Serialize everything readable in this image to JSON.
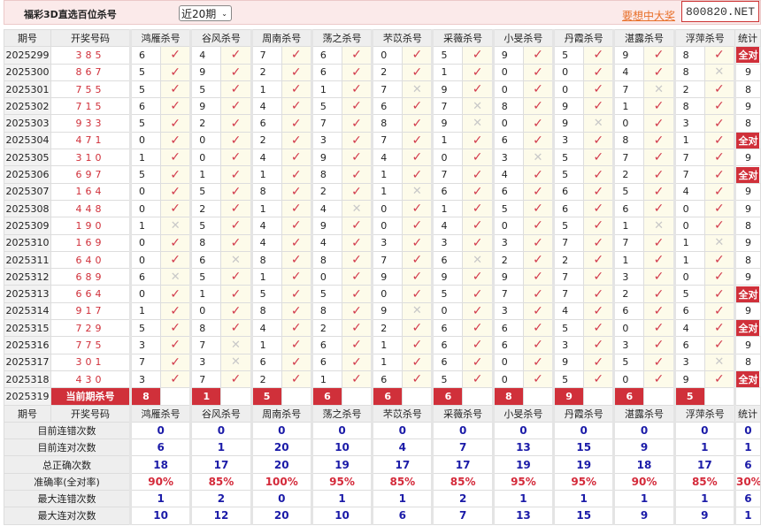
{
  "header": {
    "title": "福彩3D直选百位杀号",
    "period_select": "近20期",
    "promo": "要想中大奖，天",
    "watermark": "800820.NET"
  },
  "columns": {
    "issue": "期号",
    "draw": "开奖号码",
    "stat": "统计",
    "experts": [
      "鸿雁杀号",
      "谷风杀号",
      "周南杀号",
      "荡之杀号",
      "芣苡杀号",
      "采薇杀号",
      "小旻杀号",
      "丹霞杀号",
      "湛露杀号",
      "浮萍杀号"
    ]
  },
  "icons": {
    "hit": "check-icon",
    "miss": "cross-icon"
  },
  "colors": {
    "accent": "#d0303a",
    "check": "#d23b4c",
    "stat_value": "#1b1ba8"
  },
  "rows": [
    {
      "issue": "2025299",
      "draw": "385",
      "kills": [
        "6",
        "4",
        "7",
        "6",
        "0",
        "5",
        "9",
        "5",
        "9",
        "8"
      ],
      "hits": [
        1,
        1,
        1,
        1,
        1,
        1,
        1,
        1,
        1,
        1
      ],
      "stat": "全对"
    },
    {
      "issue": "2025300",
      "draw": "867",
      "kills": [
        "5",
        "9",
        "2",
        "6",
        "2",
        "1",
        "0",
        "0",
        "4",
        "8"
      ],
      "hits": [
        1,
        1,
        1,
        1,
        1,
        1,
        1,
        1,
        1,
        0
      ],
      "stat": "9"
    },
    {
      "issue": "2025301",
      "draw": "755",
      "kills": [
        "5",
        "5",
        "1",
        "1",
        "7",
        "9",
        "0",
        "0",
        "7",
        "2"
      ],
      "hits": [
        1,
        1,
        1,
        1,
        0,
        1,
        1,
        1,
        0,
        1
      ],
      "stat": "8"
    },
    {
      "issue": "2025302",
      "draw": "715",
      "kills": [
        "6",
        "9",
        "4",
        "5",
        "6",
        "7",
        "8",
        "9",
        "1",
        "8"
      ],
      "hits": [
        1,
        1,
        1,
        1,
        1,
        0,
        1,
        1,
        1,
        1
      ],
      "stat": "9"
    },
    {
      "issue": "2025303",
      "draw": "933",
      "kills": [
        "5",
        "2",
        "6",
        "7",
        "8",
        "9",
        "0",
        "9",
        "0",
        "3"
      ],
      "hits": [
        1,
        1,
        1,
        1,
        1,
        0,
        1,
        0,
        1,
        1
      ],
      "stat": "8"
    },
    {
      "issue": "2025304",
      "draw": "471",
      "kills": [
        "0",
        "0",
        "2",
        "3",
        "7",
        "1",
        "6",
        "3",
        "8",
        "1"
      ],
      "hits": [
        1,
        1,
        1,
        1,
        1,
        1,
        1,
        1,
        1,
        1
      ],
      "stat": "全对"
    },
    {
      "issue": "2025305",
      "draw": "310",
      "kills": [
        "1",
        "0",
        "4",
        "9",
        "4",
        "0",
        "3",
        "5",
        "7",
        "7"
      ],
      "hits": [
        1,
        1,
        1,
        1,
        1,
        1,
        0,
        1,
        1,
        1
      ],
      "stat": "9"
    },
    {
      "issue": "2025306",
      "draw": "697",
      "kills": [
        "5",
        "1",
        "1",
        "8",
        "1",
        "7",
        "4",
        "5",
        "2",
        "7"
      ],
      "hits": [
        1,
        1,
        1,
        1,
        1,
        1,
        1,
        1,
        1,
        1
      ],
      "stat": "全对"
    },
    {
      "issue": "2025307",
      "draw": "164",
      "kills": [
        "0",
        "5",
        "8",
        "2",
        "1",
        "6",
        "6",
        "6",
        "5",
        "4"
      ],
      "hits": [
        1,
        1,
        1,
        1,
        0,
        1,
        1,
        1,
        1,
        1
      ],
      "stat": "9"
    },
    {
      "issue": "2025308",
      "draw": "448",
      "kills": [
        "0",
        "2",
        "1",
        "4",
        "0",
        "1",
        "5",
        "6",
        "6",
        "0"
      ],
      "hits": [
        1,
        1,
        1,
        0,
        1,
        1,
        1,
        1,
        1,
        1
      ],
      "stat": "9"
    },
    {
      "issue": "2025309",
      "draw": "190",
      "kills": [
        "1",
        "5",
        "4",
        "9",
        "0",
        "4",
        "0",
        "5",
        "1",
        "0"
      ],
      "hits": [
        0,
        1,
        1,
        1,
        1,
        1,
        1,
        1,
        0,
        1
      ],
      "stat": "8"
    },
    {
      "issue": "2025310",
      "draw": "169",
      "kills": [
        "0",
        "8",
        "4",
        "4",
        "3",
        "3",
        "3",
        "7",
        "7",
        "1"
      ],
      "hits": [
        1,
        1,
        1,
        1,
        1,
        1,
        1,
        1,
        1,
        0
      ],
      "stat": "9"
    },
    {
      "issue": "2025311",
      "draw": "640",
      "kills": [
        "0",
        "6",
        "8",
        "8",
        "7",
        "6",
        "2",
        "2",
        "1",
        "1"
      ],
      "hits": [
        1,
        0,
        1,
        1,
        1,
        0,
        1,
        1,
        1,
        1
      ],
      "stat": "8"
    },
    {
      "issue": "2025312",
      "draw": "689",
      "kills": [
        "6",
        "5",
        "1",
        "0",
        "9",
        "9",
        "9",
        "7",
        "3",
        "0"
      ],
      "hits": [
        0,
        1,
        1,
        1,
        1,
        1,
        1,
        1,
        1,
        1
      ],
      "stat": "9"
    },
    {
      "issue": "2025313",
      "draw": "664",
      "kills": [
        "0",
        "1",
        "5",
        "5",
        "0",
        "5",
        "7",
        "7",
        "2",
        "5"
      ],
      "hits": [
        1,
        1,
        1,
        1,
        1,
        1,
        1,
        1,
        1,
        1
      ],
      "stat": "全对"
    },
    {
      "issue": "2025314",
      "draw": "917",
      "kills": [
        "1",
        "0",
        "8",
        "8",
        "9",
        "0",
        "3",
        "4",
        "6",
        "6"
      ],
      "hits": [
        1,
        1,
        1,
        1,
        0,
        1,
        1,
        1,
        1,
        1
      ],
      "stat": "9"
    },
    {
      "issue": "2025315",
      "draw": "729",
      "kills": [
        "5",
        "8",
        "4",
        "2",
        "2",
        "6",
        "6",
        "5",
        "0",
        "4"
      ],
      "hits": [
        1,
        1,
        1,
        1,
        1,
        1,
        1,
        1,
        1,
        1
      ],
      "stat": "全对"
    },
    {
      "issue": "2025316",
      "draw": "775",
      "kills": [
        "3",
        "7",
        "1",
        "6",
        "1",
        "6",
        "6",
        "3",
        "3",
        "6"
      ],
      "hits": [
        1,
        0,
        1,
        1,
        1,
        1,
        1,
        1,
        1,
        1
      ],
      "stat": "9"
    },
    {
      "issue": "2025317",
      "draw": "301",
      "kills": [
        "7",
        "3",
        "6",
        "6",
        "1",
        "6",
        "0",
        "9",
        "5",
        "3"
      ],
      "hits": [
        1,
        0,
        1,
        1,
        1,
        1,
        1,
        1,
        1,
        0
      ],
      "stat": "8"
    },
    {
      "issue": "2025318",
      "draw": "430",
      "kills": [
        "3",
        "7",
        "2",
        "1",
        "6",
        "5",
        "0",
        "5",
        "0",
        "9"
      ],
      "hits": [
        1,
        1,
        1,
        1,
        1,
        1,
        1,
        1,
        1,
        1
      ],
      "stat": "全对"
    }
  ],
  "current": {
    "issue": "2025319",
    "label": "当前期杀号",
    "kills": [
      "8",
      "1",
      "5",
      "6",
      "6",
      "6",
      "8",
      "9",
      "6",
      "5"
    ]
  },
  "stats": [
    {
      "label": "目前连错次数",
      "values": [
        "0",
        "0",
        "0",
        "0",
        "0",
        "0",
        "0",
        "0",
        "0",
        "0"
      ],
      "total": "0"
    },
    {
      "label": "目前连对次数",
      "values": [
        "6",
        "1",
        "20",
        "10",
        "4",
        "7",
        "13",
        "15",
        "9",
        "1"
      ],
      "total": "1"
    },
    {
      "label": "总正确次数",
      "values": [
        "18",
        "17",
        "20",
        "19",
        "17",
        "17",
        "19",
        "19",
        "18",
        "17"
      ],
      "total": "6"
    },
    {
      "label": "准确率(全对率)",
      "values": [
        "90%",
        "85%",
        "100%",
        "95%",
        "85%",
        "85%",
        "95%",
        "95%",
        "90%",
        "85%"
      ],
      "total": "30%",
      "rate": true
    },
    {
      "label": "最大连错次数",
      "values": [
        "1",
        "2",
        "0",
        "1",
        "1",
        "2",
        "1",
        "1",
        "1",
        "1"
      ],
      "total": "6"
    },
    {
      "label": "最大连对次数",
      "values": [
        "10",
        "12",
        "20",
        "10",
        "6",
        "7",
        "13",
        "15",
        "9",
        "9"
      ],
      "total": "1"
    }
  ]
}
